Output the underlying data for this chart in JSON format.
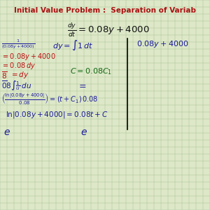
{
  "title": "Initial Value Problem :  Separation of Variab",
  "title_color": "#aa1111",
  "title_fontsize": 7.5,
  "bg_color": "#dde8c8",
  "grid_color": "#aabf9a",
  "blue": "#1a1a99",
  "red": "#bb1111",
  "green": "#116611"
}
